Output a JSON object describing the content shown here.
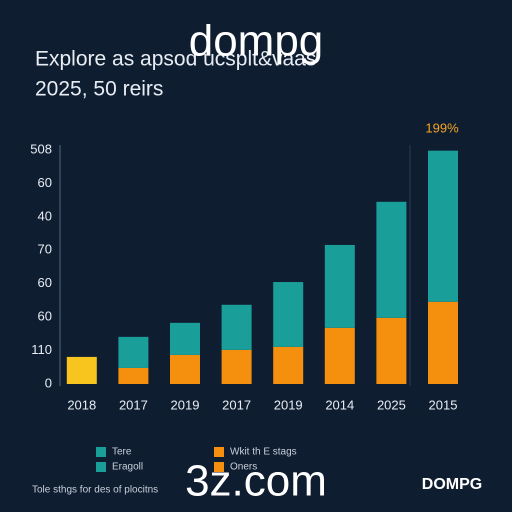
{
  "chart_data": {
    "type": "stacked-bar",
    "watermark_top": "dompg",
    "title": "Explore as apsod ucsplt&vaas",
    "subtitle": "2025, 50 reirs",
    "annotation": "199%",
    "categories": [
      "2018",
      "2017",
      "2019",
      "2017",
      "2019",
      "2014",
      "2025",
      "2015"
    ],
    "series": [
      {
        "name": "Wkit th E stags",
        "color": "#f5900f",
        "colors": [
          "#f7c51e",
          "#f5900f",
          "#f5900f",
          "#f5900f",
          "#f5900f",
          "#f5900f",
          "#f5900f",
          "#f5900f"
        ],
        "values": [
          0.81,
          0.48,
          0.87,
          1.02,
          1.11,
          1.68,
          1.98,
          2.46
        ]
      },
      {
        "name": "Tere",
        "color": "#1a9e9a",
        "values": [
          null,
          0.93,
          0.96,
          1.35,
          1.94,
          2.48,
          3.47,
          4.52
        ]
      }
    ],
    "extra_legend": [
      {
        "label": "Eragoll",
        "color": "#1a9e9a"
      },
      {
        "label": "Oners",
        "color": "#f5900f"
      }
    ],
    "ylim": [
      0,
      7
    ],
    "yticks": [
      0,
      {
        "value": 1,
        "label": "110"
      },
      {
        "value": 2,
        "label": "60"
      },
      {
        "value": 3,
        "label": "60"
      },
      {
        "value": 4,
        "label": "70"
      },
      {
        "value": 5,
        "label": "40"
      },
      {
        "value": 6,
        "label": "60"
      },
      {
        "value": 7,
        "label": "508"
      }
    ],
    "footer": "Tole sthgs for des of plocitns",
    "watermark_bottom": "3z.com",
    "logo": "DOMPG"
  }
}
